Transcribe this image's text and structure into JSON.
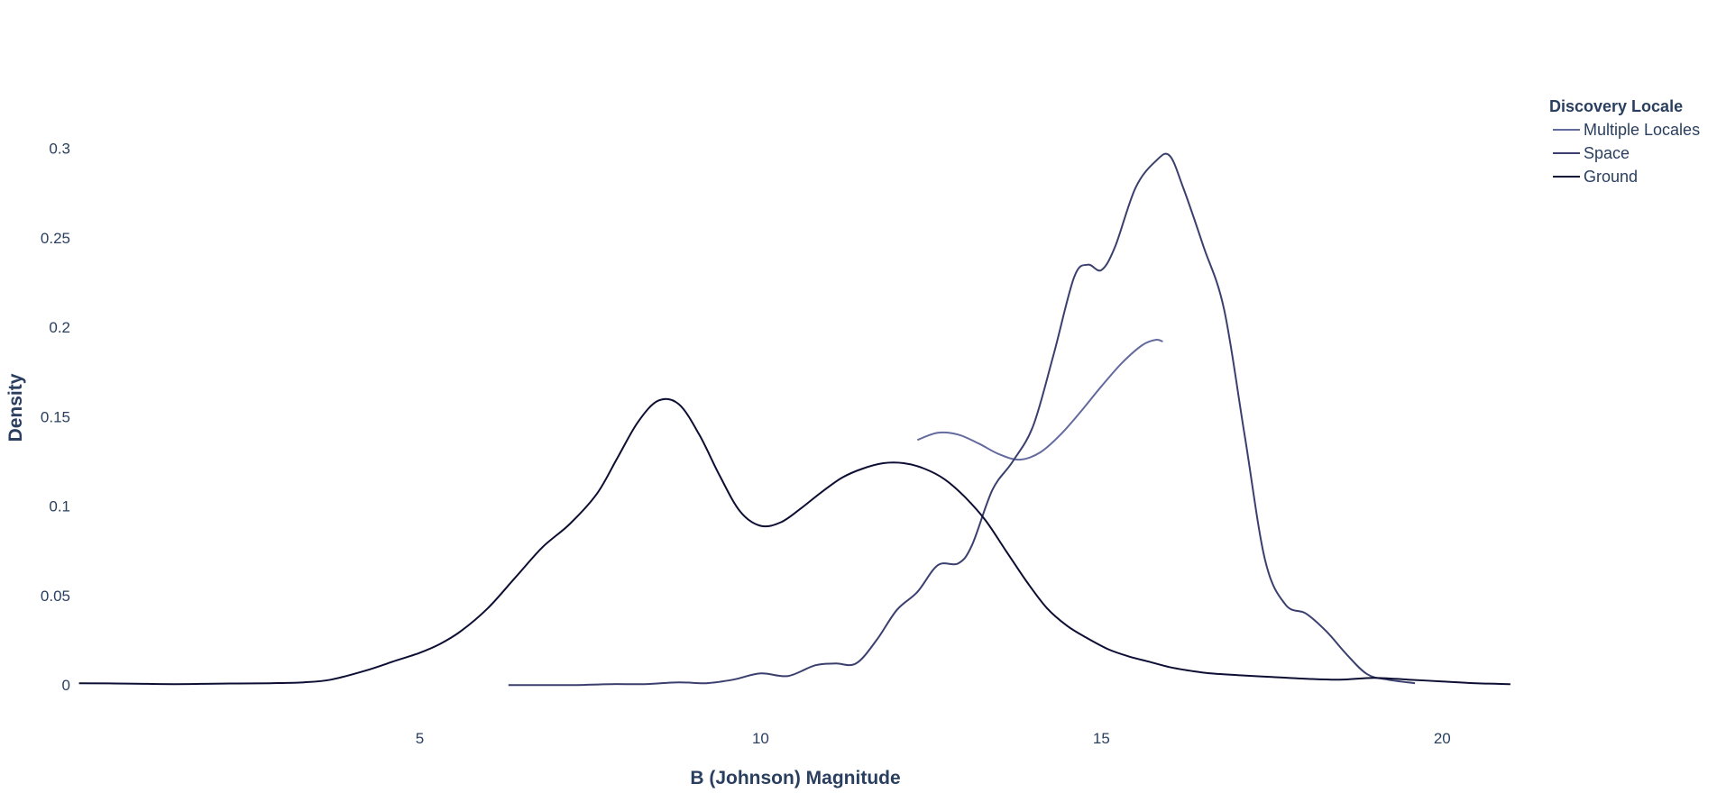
{
  "chart_data": {
    "type": "line",
    "title": "",
    "xlabel": "B (Johnson) Magnitude",
    "ylabel": "Density",
    "xlim": [
      -0.1,
      21.2
    ],
    "ylim": [
      -0.01,
      0.32
    ],
    "x_ticks": [
      5,
      10,
      15,
      20
    ],
    "x_tick_labels": [
      "5",
      "10",
      "15",
      "20"
    ],
    "y_ticks": [
      0,
      0.05,
      0.1,
      0.15,
      0.2,
      0.25,
      0.3
    ],
    "y_tick_labels": [
      "0",
      "0.05",
      "0.1",
      "0.15",
      "0.2",
      "0.25",
      "0.3"
    ],
    "grid": false,
    "legend": {
      "title": "Discovery Locale",
      "position": "top-right"
    },
    "series": [
      {
        "name": "Multiple Locales",
        "color": "#636a9e",
        "x": [
          12.3,
          12.6,
          12.9,
          13.2,
          13.5,
          13.8,
          14.1,
          14.4,
          14.7,
          15.0,
          15.3,
          15.6,
          15.8,
          15.9
        ],
        "y": [
          0.137,
          0.141,
          0.14,
          0.135,
          0.129,
          0.126,
          0.13,
          0.14,
          0.153,
          0.167,
          0.18,
          0.19,
          0.193,
          0.192
        ]
      },
      {
        "name": "Space",
        "color": "#3a3f6e",
        "x": [
          6.3,
          6.8,
          7.3,
          7.8,
          8.3,
          8.8,
          9.2,
          9.6,
          10.0,
          10.4,
          10.8,
          11.1,
          11.4,
          11.7,
          12.0,
          12.3,
          12.6,
          12.9,
          13.1,
          13.4,
          13.7,
          14.0,
          14.3,
          14.6,
          14.8,
          15.0,
          15.2,
          15.5,
          15.8,
          16.0,
          16.2,
          16.5,
          16.8,
          17.1,
          17.4,
          17.7,
          18.0,
          18.3,
          18.6,
          18.9,
          19.2,
          19.6
        ],
        "y": [
          0.0,
          0.0,
          0.0,
          0.0005,
          0.0005,
          0.0015,
          0.001,
          0.003,
          0.0065,
          0.005,
          0.011,
          0.012,
          0.012,
          0.025,
          0.042,
          0.052,
          0.067,
          0.068,
          0.078,
          0.109,
          0.125,
          0.145,
          0.185,
          0.228,
          0.235,
          0.232,
          0.245,
          0.278,
          0.293,
          0.296,
          0.278,
          0.245,
          0.21,
          0.14,
          0.07,
          0.045,
          0.04,
          0.03,
          0.017,
          0.006,
          0.003,
          0.001
        ]
      },
      {
        "name": "Ground",
        "color": "#0d0e33",
        "x": [
          0.0,
          0.7,
          1.4,
          2.1,
          2.8,
          3.3,
          3.7,
          4.2,
          4.6,
          5.0,
          5.3,
          5.6,
          6.0,
          6.4,
          6.8,
          7.2,
          7.6,
          7.9,
          8.2,
          8.5,
          8.8,
          9.1,
          9.4,
          9.7,
          10.0,
          10.3,
          10.6,
          10.9,
          11.2,
          11.5,
          11.8,
          12.1,
          12.4,
          12.7,
          13.0,
          13.3,
          13.6,
          13.9,
          14.2,
          14.5,
          14.8,
          15.1,
          15.4,
          15.7,
          16.0,
          16.3,
          16.6,
          17.0,
          17.5,
          18.0,
          18.5,
          19.0,
          19.5,
          20.0,
          20.5,
          21.0
        ],
        "y": [
          0.001,
          0.0008,
          0.0005,
          0.0008,
          0.001,
          0.0015,
          0.003,
          0.008,
          0.013,
          0.018,
          0.023,
          0.03,
          0.043,
          0.06,
          0.077,
          0.09,
          0.107,
          0.127,
          0.147,
          0.159,
          0.157,
          0.14,
          0.117,
          0.097,
          0.089,
          0.091,
          0.099,
          0.108,
          0.116,
          0.121,
          0.124,
          0.124,
          0.121,
          0.115,
          0.105,
          0.092,
          0.075,
          0.058,
          0.043,
          0.033,
          0.026,
          0.02,
          0.016,
          0.013,
          0.01,
          0.008,
          0.0065,
          0.0055,
          0.0045,
          0.0035,
          0.003,
          0.004,
          0.003,
          0.002,
          0.001,
          0.0005
        ]
      }
    ]
  }
}
